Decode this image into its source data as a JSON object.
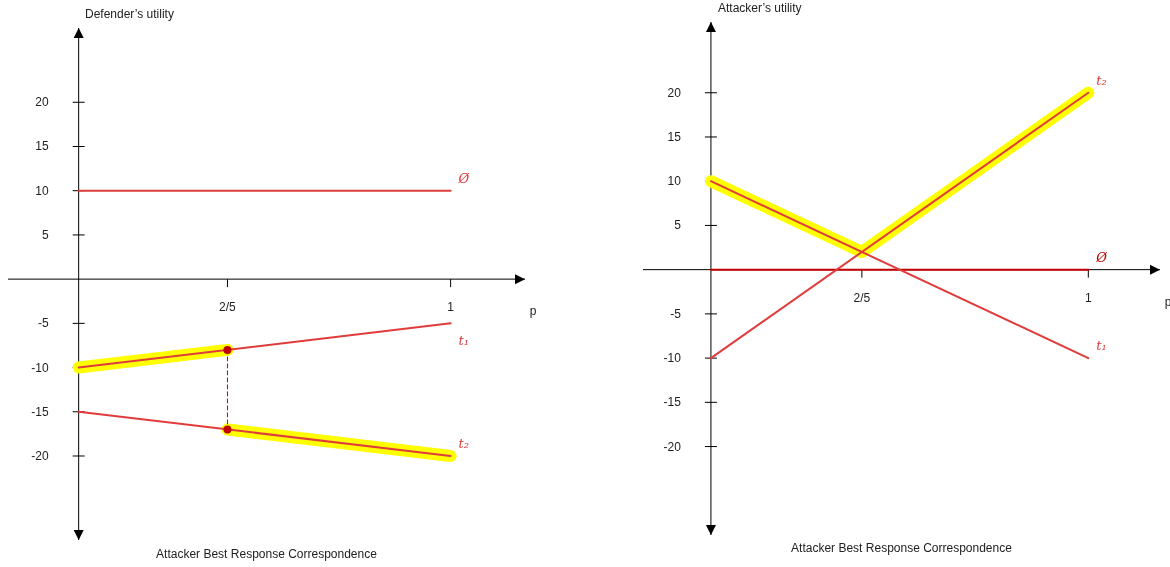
{
  "chart_data": [
    {
      "type": "line",
      "title": "Attacker Best Response Correspondence",
      "xlabel": "p",
      "ylabel": "Defender’s utility",
      "xlim": [
        -0.19,
        1.2
      ],
      "ylim": [
        -29.5,
        28.4
      ],
      "xticks": [
        {
          "value": 0.4,
          "label": "2/5"
        },
        1
      ],
      "yticks": [
        -20,
        -15,
        -10,
        -5,
        5,
        10,
        15,
        20
      ],
      "grid": false,
      "series": [
        {
          "color": "#ffff00",
          "x": [
            0,
            0.4
          ],
          "values": [
            -10,
            -8
          ]
        },
        {
          "color": "#ffff00",
          "x": [
            0.4,
            1
          ],
          "values": [
            -17,
            -20
          ]
        },
        {
          "name": "Ø",
          "color": "#e03c3c",
          "x": [
            0,
            1
          ],
          "values": [
            10,
            10
          ]
        },
        {
          "name": "t₁",
          "color": "#e03c3c",
          "x": [
            0,
            1
          ],
          "values": [
            -10,
            -5
          ]
        },
        {
          "name": "t₂",
          "color": "#e03c3c",
          "x": [
            0,
            1
          ],
          "values": [
            -15,
            -20
          ]
        },
        {
          "color": "#c00000",
          "x": [
            0.4,
            0.4
          ],
          "values": [
            -8,
            -17
          ],
          "line_style": "dashed"
        },
        {
          "type": "scatter",
          "marker": "circle",
          "color": "#c00000",
          "x": [
            0.4
          ],
          "values": [
            -8
          ]
        },
        {
          "type": "scatter",
          "marker": "circle",
          "color": "#c00000",
          "x": [
            0.4
          ],
          "values": [
            -17
          ]
        }
      ]
    },
    {
      "type": "line",
      "title": "Attacker Best Response Correspondence",
      "xlabel": "p",
      "ylabel": "Attacker’s utility",
      "xlim": [
        -0.18,
        1.19
      ],
      "ylim": [
        -30,
        28
      ],
      "xticks": [
        {
          "value": 0.4,
          "label": "2/5"
        },
        1
      ],
      "yticks": [
        -20,
        -15,
        -10,
        -5,
        5,
        10,
        15,
        20
      ],
      "grid": false,
      "series": [
        {
          "color": "#ffff00",
          "x": [
            0,
            0.4
          ],
          "values": [
            10,
            2
          ]
        },
        {
          "color": "#ffff00",
          "x": [
            0.4,
            1
          ],
          "values": [
            2,
            20
          ]
        },
        {
          "name": "Ø",
          "color": "#c00000",
          "x": [
            0,
            1
          ],
          "values": [
            0,
            0
          ]
        },
        {
          "name": "t₁",
          "color": "#e03c3c",
          "x": [
            0,
            1
          ],
          "values": [
            10,
            -10
          ]
        },
        {
          "name": "t₂",
          "color": "#e03c3c",
          "x": [
            0,
            1
          ],
          "values": [
            -10,
            20
          ]
        }
      ]
    }
  ]
}
